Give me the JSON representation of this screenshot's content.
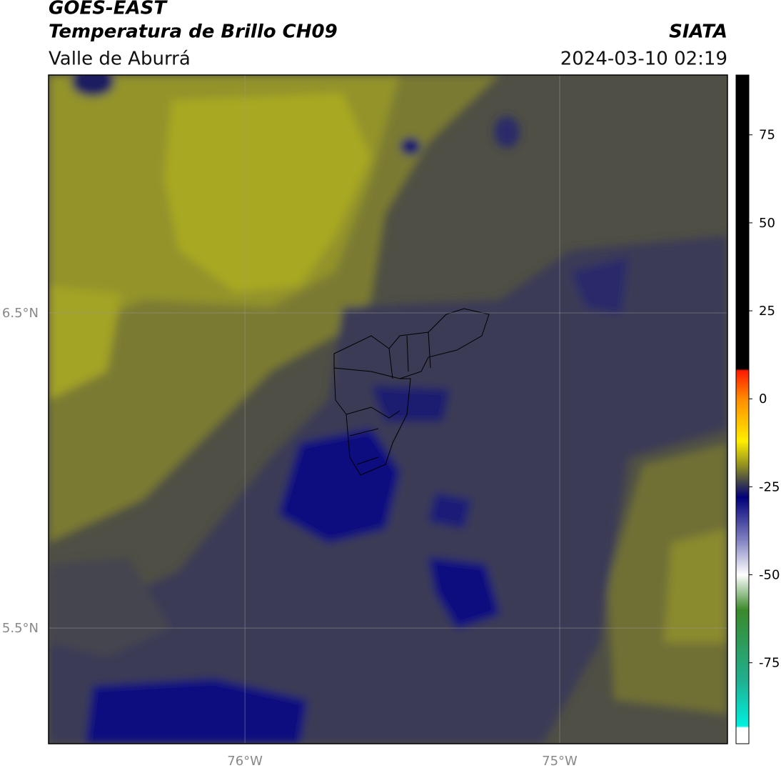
{
  "header": {
    "title": "GOES-EAST",
    "subtitle": "Temperatura de Brillo CH09",
    "region": "Valle de Aburrá",
    "source": "SIATA",
    "datetime": "2024-03-10 02:19"
  },
  "map": {
    "xlim": [
      -76.624,
      -74.467
    ],
    "ylim": [
      5.133,
      7.255
    ],
    "xticks": [
      {
        "value": -76,
        "label": "76°W"
      },
      {
        "value": -75,
        "label": "75°W"
      }
    ],
    "yticks": [
      {
        "value": 6.5,
        "label": "6.5°N"
      },
      {
        "value": 5.5,
        "label": "5.5°N"
      }
    ]
  },
  "colorbar": {
    "lim": [
      -98,
      92
    ],
    "ticks": [
      75,
      50,
      25,
      0,
      -25,
      -50,
      -75
    ],
    "stops": [
      {
        "value": 92,
        "color": "#000000"
      },
      {
        "value": 8.5,
        "color": "#000000"
      },
      {
        "value": 8,
        "color": "#ff1a00"
      },
      {
        "value": 0,
        "color": "#ff8c00"
      },
      {
        "value": -12,
        "color": "#ffee00"
      },
      {
        "value": -19,
        "color": "#8f8f20"
      },
      {
        "value": -24,
        "color": "#3c3c50"
      },
      {
        "value": -28,
        "color": "#00007a"
      },
      {
        "value": -40,
        "color": "#8080c0"
      },
      {
        "value": -50,
        "color": "#ffffff"
      },
      {
        "value": -60,
        "color": "#3a8a2a"
      },
      {
        "value": -80,
        "color": "#20b090"
      },
      {
        "value": -93,
        "color": "#00f0e0"
      },
      {
        "value": -93.5,
        "color": "#ffffff"
      },
      {
        "value": -98,
        "color": "#ffffff"
      }
    ]
  }
}
